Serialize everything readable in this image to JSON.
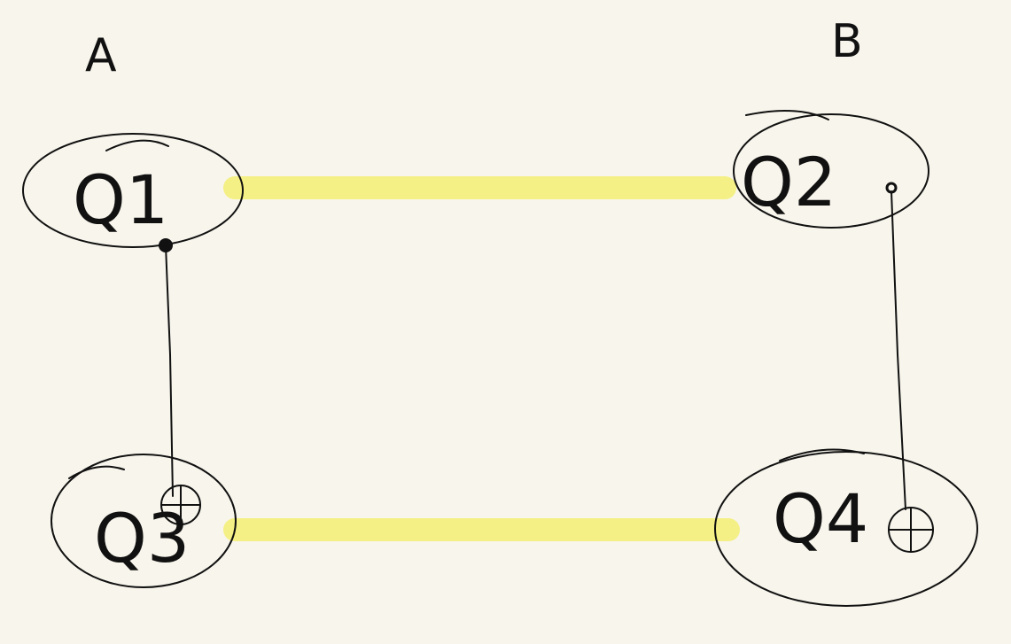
{
  "diagram": {
    "group_labels": {
      "left": "A",
      "right": "B"
    },
    "qubits": {
      "q1": {
        "label": "Q1",
        "role": "control"
      },
      "q2": {
        "label": "Q2",
        "role": "control"
      },
      "q3": {
        "label": "Q3",
        "role": "target"
      },
      "q4": {
        "label": "Q4",
        "role": "target"
      }
    },
    "colors": {
      "background": "#f8f5ec",
      "ink": "#111111",
      "highlight": "#f4f07a"
    }
  }
}
